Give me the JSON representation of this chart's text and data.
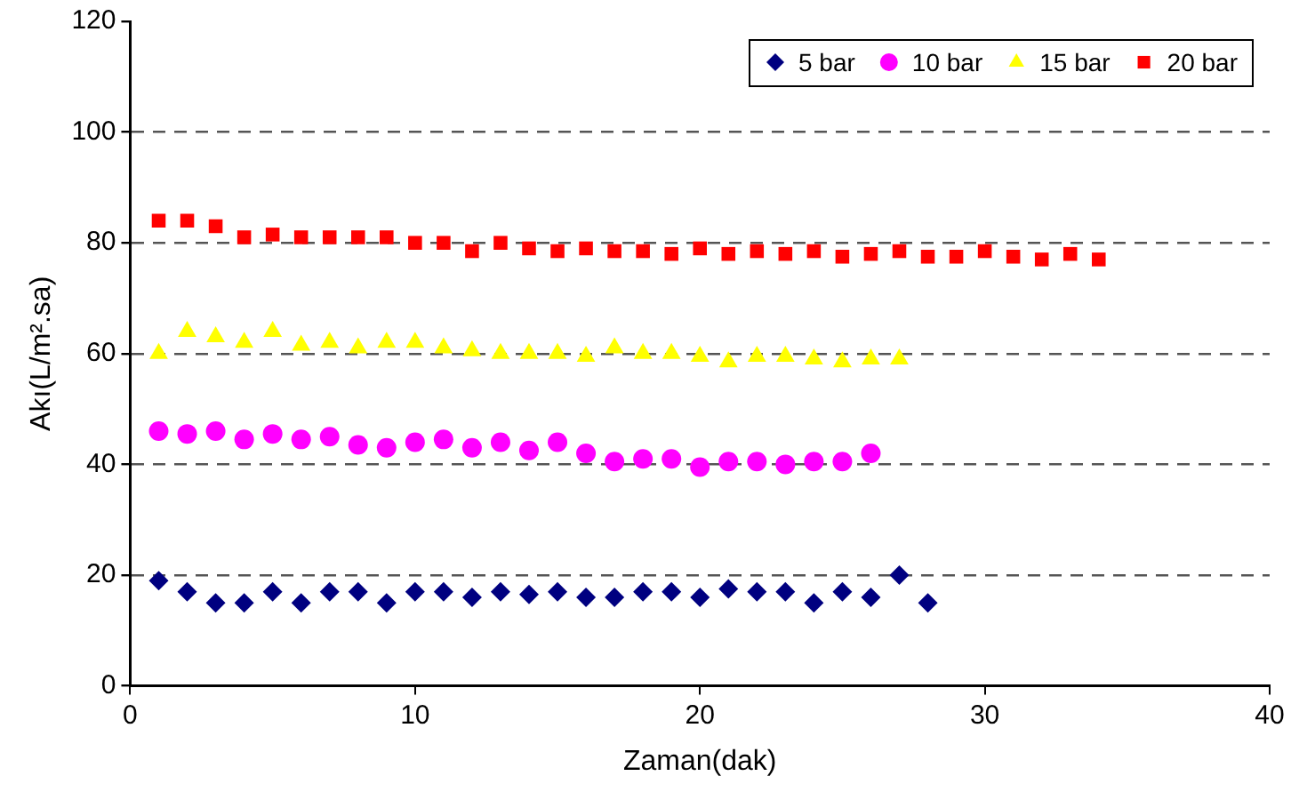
{
  "chart_data": {
    "type": "scatter",
    "xlabel": "Zaman(dak)",
    "ylabel": "Akı(L/m².sa)",
    "xlim": [
      0,
      40
    ],
    "xticks": [
      0,
      10,
      20,
      30,
      40
    ],
    "ylim": [
      0,
      120
    ],
    "yticks": [
      0,
      20,
      40,
      60,
      80,
      100,
      120
    ],
    "grid": "y",
    "legend": "top right",
    "series": [
      {
        "name": "5 bar",
        "color": "#000080",
        "marker": "diamond",
        "x": [
          1,
          2,
          3,
          4,
          5,
          6,
          7,
          8,
          9,
          10,
          11,
          12,
          13,
          14,
          15,
          16,
          17,
          18,
          19,
          20,
          21,
          22,
          23,
          24,
          25,
          26,
          27,
          28
        ],
        "values": [
          19,
          17,
          15,
          15,
          17,
          15,
          17,
          17,
          15,
          17,
          17,
          16,
          17,
          16.5,
          17,
          16,
          16,
          17,
          17,
          16,
          17.5,
          17,
          17,
          15,
          17,
          16,
          20,
          15
        ]
      },
      {
        "name": "10 bar",
        "color": "#ff00ff",
        "marker": "circle",
        "x": [
          1,
          2,
          3,
          4,
          5,
          6,
          7,
          8,
          9,
          10,
          11,
          12,
          13,
          14,
          15,
          16,
          17,
          18,
          19,
          20,
          21,
          22,
          23,
          24,
          25,
          26
        ],
        "values": [
          46,
          45.5,
          46,
          44.5,
          45.5,
          44.5,
          45,
          43.5,
          43,
          44,
          44.5,
          43,
          44,
          42.5,
          44,
          42,
          40.5,
          41,
          41,
          39.5,
          40.5,
          40.5,
          40,
          40.5,
          40.5,
          42
        ]
      },
      {
        "name": "15 bar",
        "color": "#ffff00",
        "marker": "triangle",
        "x": [
          1,
          2,
          3,
          4,
          5,
          6,
          7,
          8,
          9,
          10,
          11,
          12,
          13,
          14,
          15,
          16,
          17,
          18,
          19,
          20,
          21,
          22,
          23,
          24,
          25,
          26,
          27
        ],
        "values": [
          60,
          64,
          63,
          62,
          64,
          61.5,
          62,
          61,
          62,
          62,
          61,
          60.5,
          60,
          60,
          60,
          59.5,
          61,
          60,
          60,
          59.5,
          58.5,
          59.5,
          59.5,
          59,
          58.5,
          59,
          59
        ]
      },
      {
        "name": "20 bar",
        "color": "#ff0000",
        "marker": "square",
        "x": [
          1,
          2,
          3,
          4,
          5,
          6,
          7,
          8,
          9,
          10,
          11,
          12,
          13,
          14,
          15,
          16,
          17,
          18,
          19,
          20,
          21,
          22,
          23,
          24,
          25,
          26,
          27,
          28,
          29,
          30,
          31,
          32,
          33,
          34
        ],
        "values": [
          84,
          84,
          83,
          81,
          81.5,
          81,
          81,
          81,
          81,
          80,
          80,
          78.5,
          80,
          79,
          78.5,
          79,
          78.5,
          78.5,
          78,
          79,
          78,
          78.5,
          78,
          78.5,
          77.5,
          78,
          78.5,
          77.5,
          77.5,
          78.5,
          77.5,
          77,
          78,
          77
        ]
      }
    ]
  }
}
